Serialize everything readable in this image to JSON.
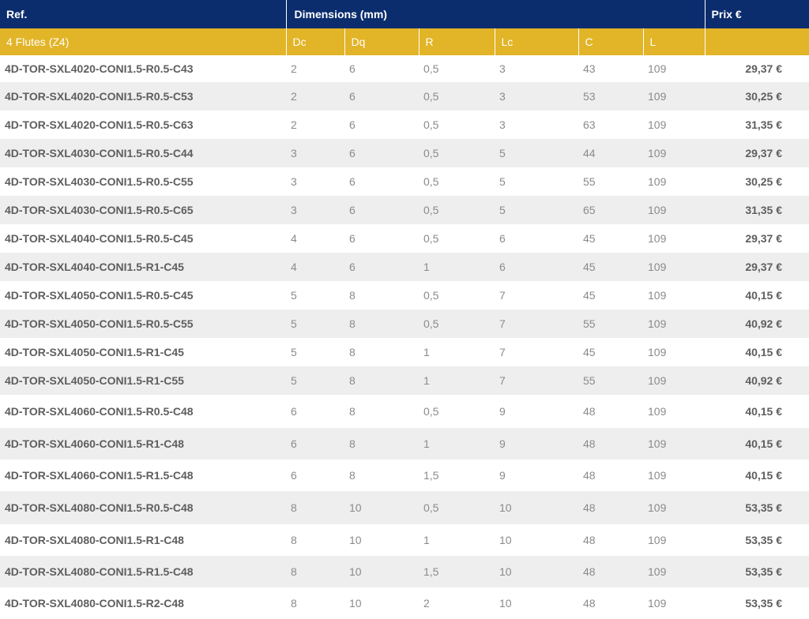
{
  "header": {
    "ref_label": "Ref.",
    "dimensions_label": "Dimensions (mm)",
    "price_label": "Prix €"
  },
  "subheader": {
    "group_label": "4 Flutes (Z4)",
    "columns": [
      "Dc",
      "Dq",
      "R",
      "Lc",
      "C",
      "L"
    ]
  },
  "rows": [
    {
      "ref": "4D-TOR-SXL4020-CONI1.5-R0.5-C43",
      "dc": "2",
      "dq": "6",
      "r": "0,5",
      "lc": "3",
      "c": "43",
      "l": "109",
      "price": "29,37 €"
    },
    {
      "ref": "4D-TOR-SXL4020-CONI1.5-R0.5-C53",
      "dc": "2",
      "dq": "6",
      "r": "0,5",
      "lc": "3",
      "c": "53",
      "l": "109",
      "price": "30,25 €"
    },
    {
      "ref": "4D-TOR-SXL4020-CONI1.5-R0.5-C63",
      "dc": "2",
      "dq": "6",
      "r": "0,5",
      "lc": "3",
      "c": "63",
      "l": "109",
      "price": "31,35 €"
    },
    {
      "ref": "4D-TOR-SXL4030-CONI1.5-R0.5-C44",
      "dc": "3",
      "dq": "6",
      "r": "0,5",
      "lc": "5",
      "c": "44",
      "l": "109",
      "price": "29,37 €"
    },
    {
      "ref": "4D-TOR-SXL4030-CONI1.5-R0.5-C55",
      "dc": "3",
      "dq": "6",
      "r": "0,5",
      "lc": "5",
      "c": "55",
      "l": "109",
      "price": "30,25 €"
    },
    {
      "ref": "4D-TOR-SXL4030-CONI1.5-R0.5-C65",
      "dc": "3",
      "dq": "6",
      "r": "0,5",
      "lc": "5",
      "c": "65",
      "l": "109",
      "price": "31,35 €"
    },
    {
      "ref": "4D-TOR-SXL4040-CONI1.5-R0.5-C45",
      "dc": "4",
      "dq": "6",
      "r": "0,5",
      "lc": "6",
      "c": "45",
      "l": "109",
      "price": "29,37 €"
    },
    {
      "ref": "4D-TOR-SXL4040-CONI1.5-R1-C45",
      "dc": "4",
      "dq": "6",
      "r": "1",
      "lc": "6",
      "c": "45",
      "l": "109",
      "price": "29,37 €"
    },
    {
      "ref": "4D-TOR-SXL4050-CONI1.5-R0.5-C45",
      "dc": "5",
      "dq": "8",
      "r": "0,5",
      "lc": "7",
      "c": "45",
      "l": "109",
      "price": "40,15 €"
    },
    {
      "ref": "4D-TOR-SXL4050-CONI1.5-R0.5-C55",
      "dc": "5",
      "dq": "8",
      "r": "0,5",
      "lc": "7",
      "c": "55",
      "l": "109",
      "price": "40,92 €"
    },
    {
      "ref": "4D-TOR-SXL4050-CONI1.5-R1-C45",
      "dc": "5",
      "dq": "8",
      "r": "1",
      "lc": "7",
      "c": "45",
      "l": "109",
      "price": "40,15 €"
    },
    {
      "ref": "4D-TOR-SXL4050-CONI1.5-R1-C55",
      "dc": "5",
      "dq": "8",
      "r": "1",
      "lc": "7",
      "c": "55",
      "l": "109",
      "price": "40,92 €"
    },
    {
      "ref": "4D-TOR-SXL4060-CONI1.5-R0.5-C48",
      "dc": "6",
      "dq": "8",
      "r": "0,5",
      "lc": "9",
      "c": "48",
      "l": "109",
      "price": "40,15 €"
    },
    {
      "ref": "4D-TOR-SXL4060-CONI1.5-R1-C48",
      "dc": "6",
      "dq": "8",
      "r": "1",
      "lc": "9",
      "c": "48",
      "l": "109",
      "price": "40,15 €"
    },
    {
      "ref": "4D-TOR-SXL4060-CONI1.5-R1.5-C48",
      "dc": "6",
      "dq": "8",
      "r": "1,5",
      "lc": "9",
      "c": "48",
      "l": "109",
      "price": "40,15 €"
    },
    {
      "ref": "4D-TOR-SXL4080-CONI1.5-R0.5-C48",
      "dc": "8",
      "dq": "10",
      "r": "0,5",
      "lc": "10",
      "c": "48",
      "l": "109",
      "price": "53,35 €"
    },
    {
      "ref": "4D-TOR-SXL4080-CONI1.5-R1-C48",
      "dc": "8",
      "dq": "10",
      "r": "1",
      "lc": "10",
      "c": "48",
      "l": "109",
      "price": "53,35 €"
    },
    {
      "ref": "4D-TOR-SXL4080-CONI1.5-R1.5-C48",
      "dc": "8",
      "dq": "10",
      "r": "1,5",
      "lc": "10",
      "c": "48",
      "l": "109",
      "price": "53,35 €"
    },
    {
      "ref": "4D-TOR-SXL4080-CONI1.5-R2-C48",
      "dc": "8",
      "dq": "10",
      "r": "2",
      "lc": "10",
      "c": "48",
      "l": "109",
      "price": "53,35 €"
    }
  ]
}
